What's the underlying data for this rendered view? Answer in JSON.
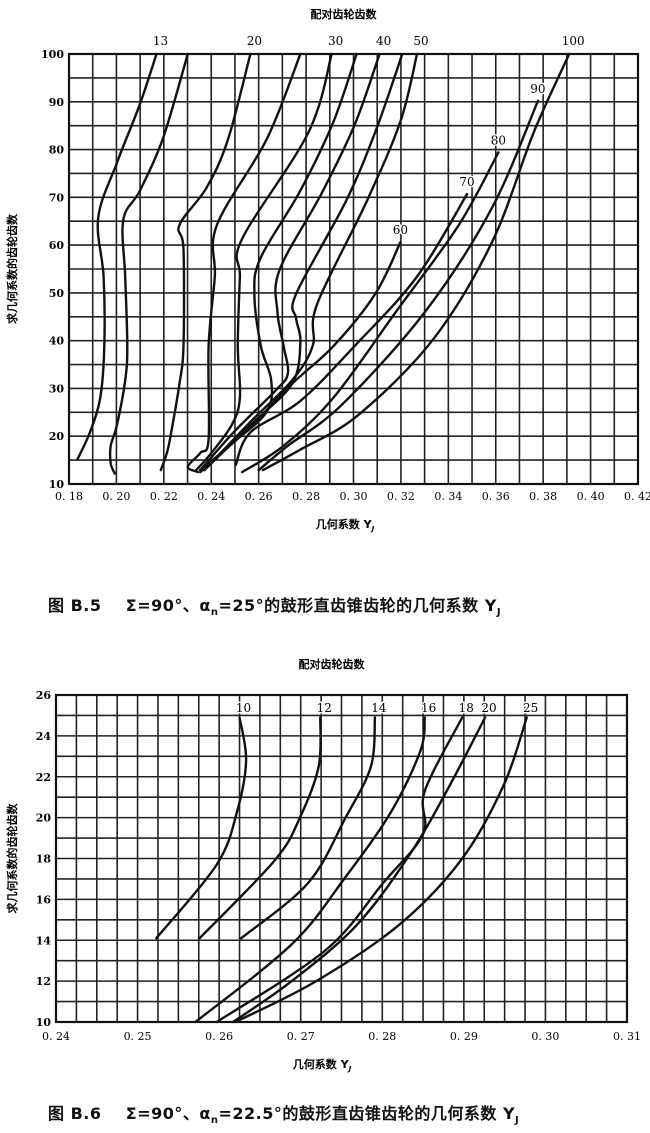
{
  "chart_data": [
    {
      "type": "line",
      "title": "配对齿轮齿数",
      "xlabel": "几何系数 YJ",
      "xlabel_main": "几何系数 Y",
      "xlabel_sub": "J",
      "ylabel": "求几何系数的齿轮齿数",
      "xlim": [
        0.18,
        0.42
      ],
      "ylim": [
        10,
        100
      ],
      "grid": true,
      "x_ticks": [
        "0. 18",
        "0. 20",
        "0. 22",
        "0. 24",
        "0. 26",
        "0. 28",
        "0. 30",
        "0. 32",
        "0. 34",
        "0. 36",
        "0. 38",
        "0. 40",
        "0. 42"
      ],
      "y_ticks": [
        "10",
        "20",
        "30",
        "40",
        "50",
        "60",
        "70",
        "80",
        "90",
        "100"
      ],
      "line_color": "#111111",
      "series": [
        {
          "name": "13",
          "points": [
            [
              0.2169,
              100
            ],
            [
              0.2099,
              89.5
            ],
            [
              0.2002,
              77.2
            ],
            [
              0.1923,
              65.7
            ],
            [
              0.1946,
              53.4
            ],
            [
              0.1949,
              38.9
            ],
            [
              0.1932,
              28.1
            ],
            [
              0.1888,
              20.8
            ],
            [
              0.1835,
              15.1
            ]
          ]
        },
        {
          "points": [
            [
              0.2301,
              100
            ],
            [
              0.2196,
              82.3
            ],
            [
              0.2099,
              71.4
            ],
            [
              0.2029,
              65.3
            ],
            [
              0.2037,
              53.4
            ],
            [
              0.2046,
              38.9
            ],
            [
              0.2037,
              31.7
            ],
            [
              0.2002,
              22.3
            ],
            [
              0.1976,
              18
            ],
            [
              0.1976,
              14.3
            ],
            [
              0.1993,
              12.2
            ]
          ]
        },
        {
          "name": "20",
          "points": [
            [
              0.2565,
              100
            ],
            [
              0.247,
              82
            ],
            [
              0.238,
              72
            ],
            [
              0.2266,
              64.2
            ],
            [
              0.2283,
              59.2
            ],
            [
              0.2283,
              38.9
            ],
            [
              0.2266,
              31
            ],
            [
              0.2231,
              20.8
            ],
            [
              0.2213,
              16.5
            ],
            [
              0.2187,
              12.9
            ]
          ]
        },
        {
          "points": [
            [
              0.2776,
              100
            ],
            [
              0.2635,
              82.3
            ],
            [
              0.2424,
              64.2
            ],
            [
              0.2415,
              53.4
            ],
            [
              0.2389,
              38.9
            ],
            [
              0.2389,
              19.4
            ],
            [
              0.2354,
              16.5
            ],
            [
              0.2301,
              13.6
            ],
            [
              0.2345,
              12.5
            ]
          ]
        },
        {
          "name": "30",
          "points": [
            [
              0.2908,
              100
            ],
            [
              0.2811,
              83.7
            ],
            [
              0.253,
              61.3
            ],
            [
              0.2521,
              53.4
            ],
            [
              0.2512,
              38.9
            ],
            [
              0.2521,
              28.1
            ],
            [
              0.2486,
              22.3
            ],
            [
              0.2389,
              15.8
            ],
            [
              0.2336,
              12.9
            ]
          ]
        },
        {
          "points": [
            [
              0.3013,
              100
            ],
            [
              0.2916,
              85.9
            ],
            [
              0.2776,
              71.4
            ],
            [
              0.2609,
              57.4
            ],
            [
              0.2582,
              49.8
            ],
            [
              0.2609,
              38.9
            ],
            [
              0.2653,
              31.7
            ],
            [
              0.2635,
              25.2
            ],
            [
              0.2494,
              18.7
            ],
            [
              0.2354,
              12.9
            ]
          ]
        },
        {
          "name": "40",
          "points": [
            [
              0.311,
              100
            ],
            [
              0.3005,
              85.2
            ],
            [
              0.2864,
              70.7
            ],
            [
              0.2688,
              54.8
            ],
            [
              0.2679,
              46.1
            ],
            [
              0.2705,
              38.9
            ],
            [
              0.2723,
              33.1
            ],
            [
              0.267,
              29.5
            ],
            [
              0.2494,
              20.8
            ],
            [
              0.2354,
              12.9
            ]
          ]
        },
        {
          "points": [
            [
              0.3206,
              100
            ],
            [
              0.3092,
              83.7
            ],
            [
              0.2969,
              69.3
            ],
            [
              0.2758,
              49.8
            ],
            [
              0.2758,
              44.7
            ],
            [
              0.2776,
              39.6
            ],
            [
              0.2741,
              31
            ],
            [
              0.2565,
              22.3
            ],
            [
              0.2371,
              12.9
            ]
          ]
        },
        {
          "name": "50",
          "points": [
            [
              0.3268,
              100
            ],
            [
              0.3198,
              85.9
            ],
            [
              0.3057,
              69.3
            ],
            [
              0.2846,
              47.6
            ],
            [
              0.2828,
              38.9
            ],
            [
              0.2741,
              31.7
            ],
            [
              0.2565,
              23
            ],
            [
              0.2371,
              12.9
            ]
          ]
        },
        {
          "name": "60",
          "points": [
            [
              0.3198,
              60.6
            ],
            [
              0.3092,
              49.8
            ],
            [
              0.2916,
              38.9
            ],
            [
              0.2741,
              31
            ],
            [
              0.2565,
              22
            ],
            [
              0.2354,
              12.5
            ]
          ]
        },
        {
          "name": "70",
          "points": [
            [
              0.3479,
              70.7
            ],
            [
              0.3268,
              53.4
            ],
            [
              0.3005,
              38.9
            ],
            [
              0.2776,
              27.4
            ],
            [
              0.2565,
              20.8
            ],
            [
              0.2503,
              14
            ]
          ]
        },
        {
          "name": "80",
          "points": [
            [
              0.3611,
              79.4
            ],
            [
              0.3444,
              64.2
            ],
            [
              0.318,
              46.1
            ],
            [
              0.2916,
              28.1
            ],
            [
              0.2705,
              18
            ],
            [
              0.253,
              12.5
            ]
          ]
        },
        {
          "name": "90",
          "points": [
            [
              0.3778,
              90.2
            ],
            [
              0.3584,
              67.8
            ],
            [
              0.3303,
              46.1
            ],
            [
              0.2951,
              26.6
            ],
            [
              0.2723,
              18
            ],
            [
              0.26,
              12.9
            ]
          ]
        },
        {
          "name": "100",
          "points": [
            [
              0.391,
              100
            ],
            [
              0.3761,
              83.7
            ],
            [
              0.3584,
              60.6
            ],
            [
              0.3338,
              40.4
            ],
            [
              0.3022,
              24.5
            ],
            [
              0.2776,
              17.2
            ],
            [
              0.2618,
              12.9
            ]
          ]
        }
      ]
    },
    {
      "type": "line",
      "title": "配对齿轮齿数",
      "xlabel": "几何系数 YJ",
      "xlabel_main": "几何系数 Y",
      "xlabel_sub": "J",
      "ylabel": "求几何系数的齿轮齿数",
      "xlim": [
        0.24,
        0.31
      ],
      "ylim": [
        10,
        26
      ],
      "grid": true,
      "x_ticks": [
        "0. 24",
        "0. 25",
        "0. 26",
        "0. 27",
        "0. 28",
        "0. 29",
        "0. 30",
        "0. 31"
      ],
      "y_ticks": [
        "10",
        "12",
        "14",
        "16",
        "18",
        "20",
        "22",
        "24",
        "26"
      ],
      "line_color": "#111111",
      "series": [
        {
          "name": "10",
          "points": [
            [
              0.2625,
              24.9
            ],
            [
              0.2633,
              22.8
            ],
            [
              0.2622,
              20.3
            ],
            [
              0.2597,
              17.7
            ],
            [
              0.2523,
              14.1
            ]
          ]
        },
        {
          "name": "12",
          "points": [
            [
              0.2724,
              24.9
            ],
            [
              0.2722,
              22.5
            ],
            [
              0.2699,
              20
            ],
            [
              0.2668,
              17.9
            ],
            [
              0.2576,
              14.1
            ]
          ]
        },
        {
          "name": "14",
          "points": [
            [
              0.2791,
              24.9
            ],
            [
              0.2786,
              22.5
            ],
            [
              0.2755,
              20
            ],
            [
              0.2709,
              16.8
            ],
            [
              0.2627,
              14.1
            ]
          ]
        },
        {
          "name": "16",
          "points": [
            [
              0.2852,
              24.9
            ],
            [
              0.2847,
              23.3
            ],
            [
              0.2811,
              20.3
            ],
            [
              0.2755,
              17.1
            ],
            [
              0.2689,
              13.8
            ],
            [
              0.2571,
              10
            ]
          ]
        },
        {
          "name": "18",
          "points": [
            [
              0.2898,
              24.9
            ],
            [
              0.2852,
              21.3
            ],
            [
              0.285,
              19.2
            ],
            [
              0.2801,
              16.8
            ],
            [
              0.273,
              13.5
            ],
            [
              0.2597,
              10
            ]
          ]
        },
        {
          "name": "20",
          "points": [
            [
              0.2926,
              24.9
            ],
            [
              0.2883,
              21.6
            ],
            [
              0.2837,
              18.4
            ],
            [
              0.277,
              14.8
            ],
            [
              0.2689,
              12
            ],
            [
              0.2617,
              10
            ]
          ]
        },
        {
          "name": "25",
          "points": [
            [
              0.2977,
              24.9
            ],
            [
              0.2949,
              21.6
            ],
            [
              0.2898,
              18
            ],
            [
              0.2822,
              14.8
            ],
            [
              0.2719,
              12
            ],
            [
              0.262,
              10
            ]
          ]
        }
      ]
    }
  ],
  "captions": [
    {
      "fig": "图 B.5",
      "a": "Σ=90°、α",
      "a_sub": "n",
      "b": "=25°的鼓形直齿锥齿轮的几何系数 Y",
      "b_sub": "J"
    },
    {
      "fig": "图 B.6",
      "a": "Σ=90°、α",
      "a_sub": "n",
      "b": "=22.5°的鼓形直齿锥齿轮的几何系数 Y",
      "b_sub": "J"
    }
  ]
}
